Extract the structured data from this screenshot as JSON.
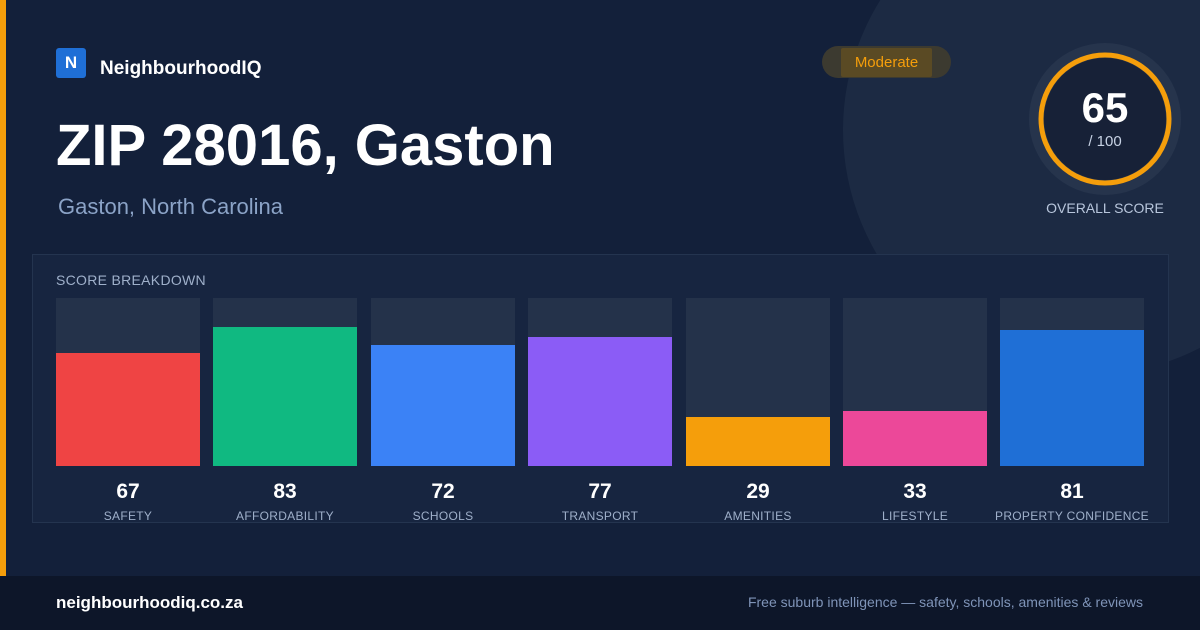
{
  "brand": {
    "mark": "N",
    "name": "NeighbourhoodIQ"
  },
  "header": {
    "title": "ZIP 28016, Gaston",
    "subtitle": "Gaston, North Carolina",
    "rating_badge": "Moderate"
  },
  "overall": {
    "score": "65",
    "max": "/ 100",
    "label": "OVERALL SCORE",
    "value": 65
  },
  "breakdown": {
    "title": "SCORE BREAKDOWN",
    "items": [
      {
        "label": "SAFETY",
        "score": "67",
        "value": 67,
        "color": "#ef4444"
      },
      {
        "label": "AFFORDABILITY",
        "score": "83",
        "value": 83,
        "color": "#10b981"
      },
      {
        "label": "SCHOOLS",
        "score": "72",
        "value": 72,
        "color": "#3b82f6"
      },
      {
        "label": "TRANSPORT",
        "score": "77",
        "value": 77,
        "color": "#8b5cf6"
      },
      {
        "label": "AMENITIES",
        "score": "29",
        "value": 29,
        "color": "#f59e0b"
      },
      {
        "label": "LIFESTYLE",
        "score": "33",
        "value": 33,
        "color": "#ec4899"
      },
      {
        "label": "PROPERTY CONFIDENCE",
        "score": "81",
        "value": 81,
        "color": "#1f6fd6"
      }
    ]
  },
  "footer": {
    "site": "neighbourhoodiq.co.za",
    "tagline": "Free suburb intelligence — safety, schools, amenities & reviews"
  },
  "colors": {
    "accent": "#f59e0b",
    "background": "#13203a",
    "brand": "#1f6fd6"
  }
}
